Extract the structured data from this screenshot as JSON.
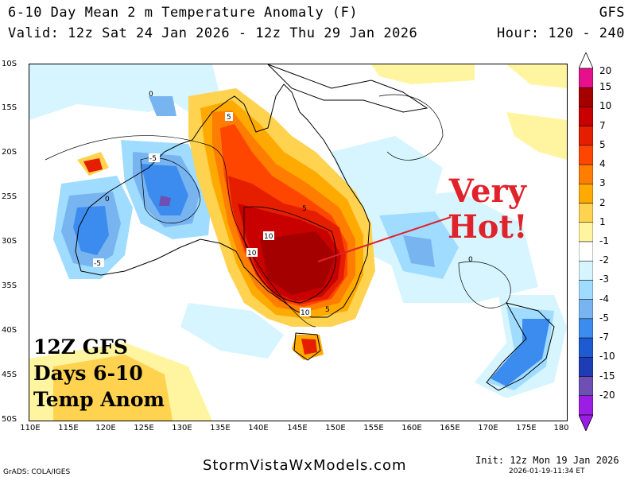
{
  "header": {
    "title": "6-10 Day Mean 2 m Temperature Anomaly (F)",
    "model": "GFS",
    "valid": "Valid: 12z Sat 24 Jan 2026 - 12z Thu 29 Jan 2026",
    "hours": "Hour: 120 - 240"
  },
  "axes": {
    "lat_labels": [
      "10S",
      "15S",
      "20S",
      "25S",
      "30S",
      "35S",
      "40S",
      "45S",
      "50S"
    ],
    "lon_labels": [
      "110E",
      "115E",
      "120E",
      "125E",
      "130E",
      "135E",
      "140E",
      "145E",
      "150E",
      "155E",
      "160E",
      "165E",
      "170E",
      "175E",
      "180"
    ]
  },
  "contour_labels": [
    "5",
    "-5",
    "0",
    "0",
    "-5",
    "5",
    "10",
    "10",
    "10",
    "5",
    "0"
  ],
  "overlay": {
    "line1": "12Z GFS",
    "line2": "Days 6-10",
    "line3": "Temp Anom"
  },
  "callout": {
    "line1": "Very",
    "line2": "Hot!"
  },
  "legend": {
    "labels": [
      "20",
      "15",
      "10",
      "7",
      "5",
      "4",
      "3",
      "2",
      "1",
      "-1",
      "-2",
      "-3",
      "-4",
      "-5",
      "-7",
      "-10",
      "-15",
      "-20"
    ],
    "colors": [
      "#e60f8c",
      "#a50000",
      "#c80000",
      "#e61e00",
      "#ff4600",
      "#ff7d00",
      "#ffaa00",
      "#ffd250",
      "#fff5a0",
      "#ffffff",
      "#d7f5ff",
      "#a0dcff",
      "#78b4f0",
      "#3c8cf0",
      "#1e5ad2",
      "#1e3cb4",
      "#6e50b4",
      "#9b1ee6"
    ]
  },
  "footer": {
    "site": "StormVistaWxModels.com",
    "source": "GrADS: COLA/IGES",
    "init": "Init: 12z Mon 19 Jan 2026",
    "stamp": "2026-01-19-11:34 ET"
  }
}
